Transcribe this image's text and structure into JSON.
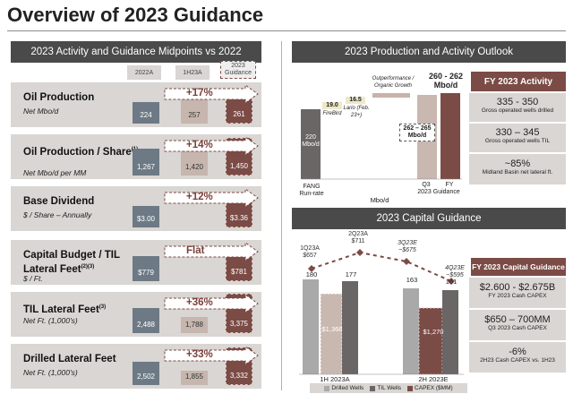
{
  "page_title": "Overview of 2023 Guidance",
  "left": {
    "header": "2023 Activity and Guidance Midpoints vs 2022",
    "legend": [
      "2022A",
      "1H23A",
      "2023 Guidance"
    ],
    "rows": [
      {
        "title": "Oil Production",
        "sup": "",
        "sub": "Net Mbo/d",
        "v2022": "224",
        "v1h23": "257",
        "vguid": "261",
        "pct": "+17%"
      },
      {
        "title": "Oil Production / Share",
        "sup": "(1)",
        "sub": "Net Mbo/d per MM",
        "v2022": "1,267",
        "v1h23": "1,420",
        "vguid": "1,450",
        "pct": "+14%"
      },
      {
        "title": "Base Dividend",
        "sup": "",
        "sub": "$ / Share – Annually",
        "v2022": "$3.00",
        "v1h23": "",
        "vguid": "$3.36",
        "pct": "+12%"
      },
      {
        "title": "Capital Budget / TIL Lateral Feet",
        "sup": "(2)(3)",
        "sub": "$ / Ft.",
        "v2022": "$779",
        "v1h23": "",
        "vguid": "$781",
        "pct": "Flat"
      },
      {
        "title": "TIL Lateral Feet",
        "sup": "(3)",
        "sub": "Net Ft. (1,000's)",
        "v2022": "2,488",
        "v1h23": "1,788",
        "vguid": "3,375",
        "pct": "+36%"
      },
      {
        "title": "Drilled Lateral Feet",
        "sup": "",
        "sub": "Net Ft. (1,000's)",
        "v2022": "2,502",
        "v1h23": "1,855",
        "vguid": "3,332",
        "pct": "+33%"
      }
    ]
  },
  "outlook": {
    "header": "2023 Production and Activity Outlook",
    "fang_label": "220 Mbo/d",
    "fang_cat": "FANG Run-rate",
    "firebird_val": "19.0",
    "firebird_lbl": "FireBird",
    "lario_val": "16.5",
    "lario_lbl": "Lario (Feb. 23+)",
    "outperf_lbl": "Outperformance / Organic Growth",
    "q3_range": "262 – 265 Mbo/d",
    "q3_cat": "Q3",
    "fy_cat": "FY",
    "fy_top": "260 - 262 Mbo/d",
    "guidance_cat": "2023 Guidance",
    "xlabel": "Mbo/d"
  },
  "fy_activity": {
    "header": "FY 2023 Activity",
    "items": [
      {
        "big": "335 - 350",
        "small": "Gross operated wells drilled"
      },
      {
        "big": "330 – 345",
        "small": "Gross operated wells TIL"
      },
      {
        "big": "~85%",
        "small": "Midland Basin net lateral ft."
      }
    ]
  },
  "capital": {
    "header": "2023 Capital Guidance",
    "points": [
      {
        "label": "1Q23A",
        "value": "$657"
      },
      {
        "label": "2Q23A",
        "value": "$711"
      },
      {
        "label": "3Q23E",
        "value": "~$675"
      },
      {
        "label": "4Q23E",
        "value": "~$595"
      }
    ],
    "h1": {
      "drilled": "180",
      "til": "177",
      "capex": "$1,368",
      "cat": "1H 2023A"
    },
    "h2": {
      "drilled": "163",
      "til": "161",
      "capex": "$1,270",
      "cat": "2H 2023E"
    },
    "legend": [
      "Drilled Wells",
      "TIL Wells",
      "CAPEX ($MM)"
    ]
  },
  "fy_capital": {
    "header": "FY 2023 Capital Guidance",
    "items": [
      {
        "big": "$2.600 - $2.675B",
        "small": "FY 2023 Cash CAPEX"
      },
      {
        "big": "$650 – 700MM",
        "small": "Q3 2023 Cash CAPEX"
      },
      {
        "big": "-6%",
        "small": "2H23 Cash CAPEX vs. 1H23"
      }
    ]
  }
}
